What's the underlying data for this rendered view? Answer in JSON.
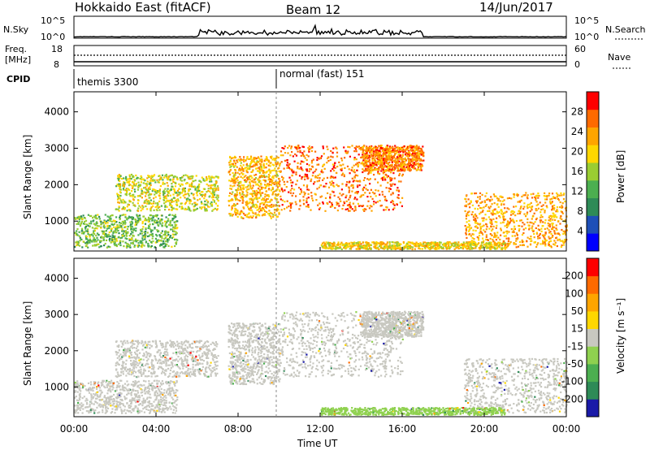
{
  "header": {
    "station": "Hokkaido East (fitACF)",
    "beam": "Beam 12",
    "date": "14/Jun/2017"
  },
  "top_panels": {
    "nsky_label": "N.Sky",
    "nsky_ticks": [
      "10^5",
      "10^0"
    ],
    "nsearch_label": "N.Search",
    "nsearch_ticks": [
      "10^5",
      "10^0"
    ],
    "freq_label": "Freq.",
    "freq_unit": "[MHz]",
    "freq_ticks": [
      "18",
      "8"
    ],
    "nave_label": "Nave",
    "nave_ticks": [
      "60",
      "0"
    ],
    "cpid_label": "CPID",
    "cpid_segments": [
      {
        "label": "themis 3300",
        "start_hour": 0
      },
      {
        "label": "normal (fast) 151",
        "start_hour": 9.95
      }
    ]
  },
  "x_axis": {
    "label": "Time UT",
    "ticks": [
      "00:00",
      "04:00",
      "08:00",
      "12:00",
      "16:00",
      "20:00",
      "00:00"
    ],
    "range_hours": [
      0,
      24
    ]
  },
  "chart_data": [
    {
      "type": "heatmap",
      "panel": "power",
      "ylabel": "Slant Range [km]",
      "yticks": [
        "1000",
        "2000",
        "3000",
        "4000"
      ],
      "ylim": [
        180,
        4550
      ],
      "colorbar_label": "Power [dB]",
      "colorbar_ticks": [
        "4",
        "8",
        "12",
        "16",
        "20",
        "24",
        "28"
      ],
      "colorbar_range": [
        0,
        32
      ],
      "colors": [
        "#0000ff",
        "#1e4fb8",
        "#2e8b57",
        "#4caf50",
        "#9acd32",
        "#ffd700",
        "#ffa500",
        "#ff6a00",
        "#ff0000"
      ],
      "scatter_regions": [
        {
          "t": [
            0,
            5
          ],
          "r": [
            300,
            1200
          ],
          "value": 14
        },
        {
          "t": [
            2,
            7
          ],
          "r": [
            1300,
            2300
          ],
          "value": 18
        },
        {
          "t": [
            7.5,
            10
          ],
          "r": [
            1100,
            2800
          ],
          "value": 22
        },
        {
          "t": [
            10,
            16
          ],
          "r": [
            1300,
            3100
          ],
          "value": 26
        },
        {
          "t": [
            14,
            17
          ],
          "r": [
            2400,
            3100
          ],
          "value": 25
        },
        {
          "t": [
            19,
            24
          ],
          "r": [
            300,
            1800
          ],
          "value": 23
        },
        {
          "t": [
            12,
            21
          ],
          "r": [
            250,
            450
          ],
          "value": 20
        }
      ]
    },
    {
      "type": "heatmap",
      "panel": "velocity",
      "ylabel": "Slant Range [km]",
      "yticks": [
        "1000",
        "2000",
        "3000",
        "4000"
      ],
      "ylim": [
        180,
        4550
      ],
      "colorbar_label": "Velocity [m s⁻¹]",
      "colorbar_ticks": [
        "200",
        "100",
        "50",
        "15",
        "-15",
        "-50",
        "-100",
        "-200"
      ],
      "colorbar_range": [
        -250,
        250
      ],
      "colors": [
        "#1a1aa8",
        "#2e8b57",
        "#4caf50",
        "#8fd14f",
        "#c8c8c0",
        "#ffd700",
        "#ffa500",
        "#ff6a00",
        "#ff0000"
      ],
      "scatter_regions": [
        {
          "t": [
            0,
            5
          ],
          "r": [
            300,
            1200
          ],
          "value": 0
        },
        {
          "t": [
            2,
            7
          ],
          "r": [
            1300,
            2300
          ],
          "value": 0
        },
        {
          "t": [
            7.5,
            10
          ],
          "r": [
            1100,
            2800
          ],
          "value": 0
        },
        {
          "t": [
            10,
            16
          ],
          "r": [
            1300,
            3100
          ],
          "value": 0
        },
        {
          "t": [
            14,
            17
          ],
          "r": [
            2400,
            3100
          ],
          "value": 0
        },
        {
          "t": [
            19,
            24
          ],
          "r": [
            300,
            1800
          ],
          "value": 0
        },
        {
          "t": [
            12,
            21
          ],
          "r": [
            250,
            450
          ],
          "value": -60
        }
      ]
    }
  ]
}
